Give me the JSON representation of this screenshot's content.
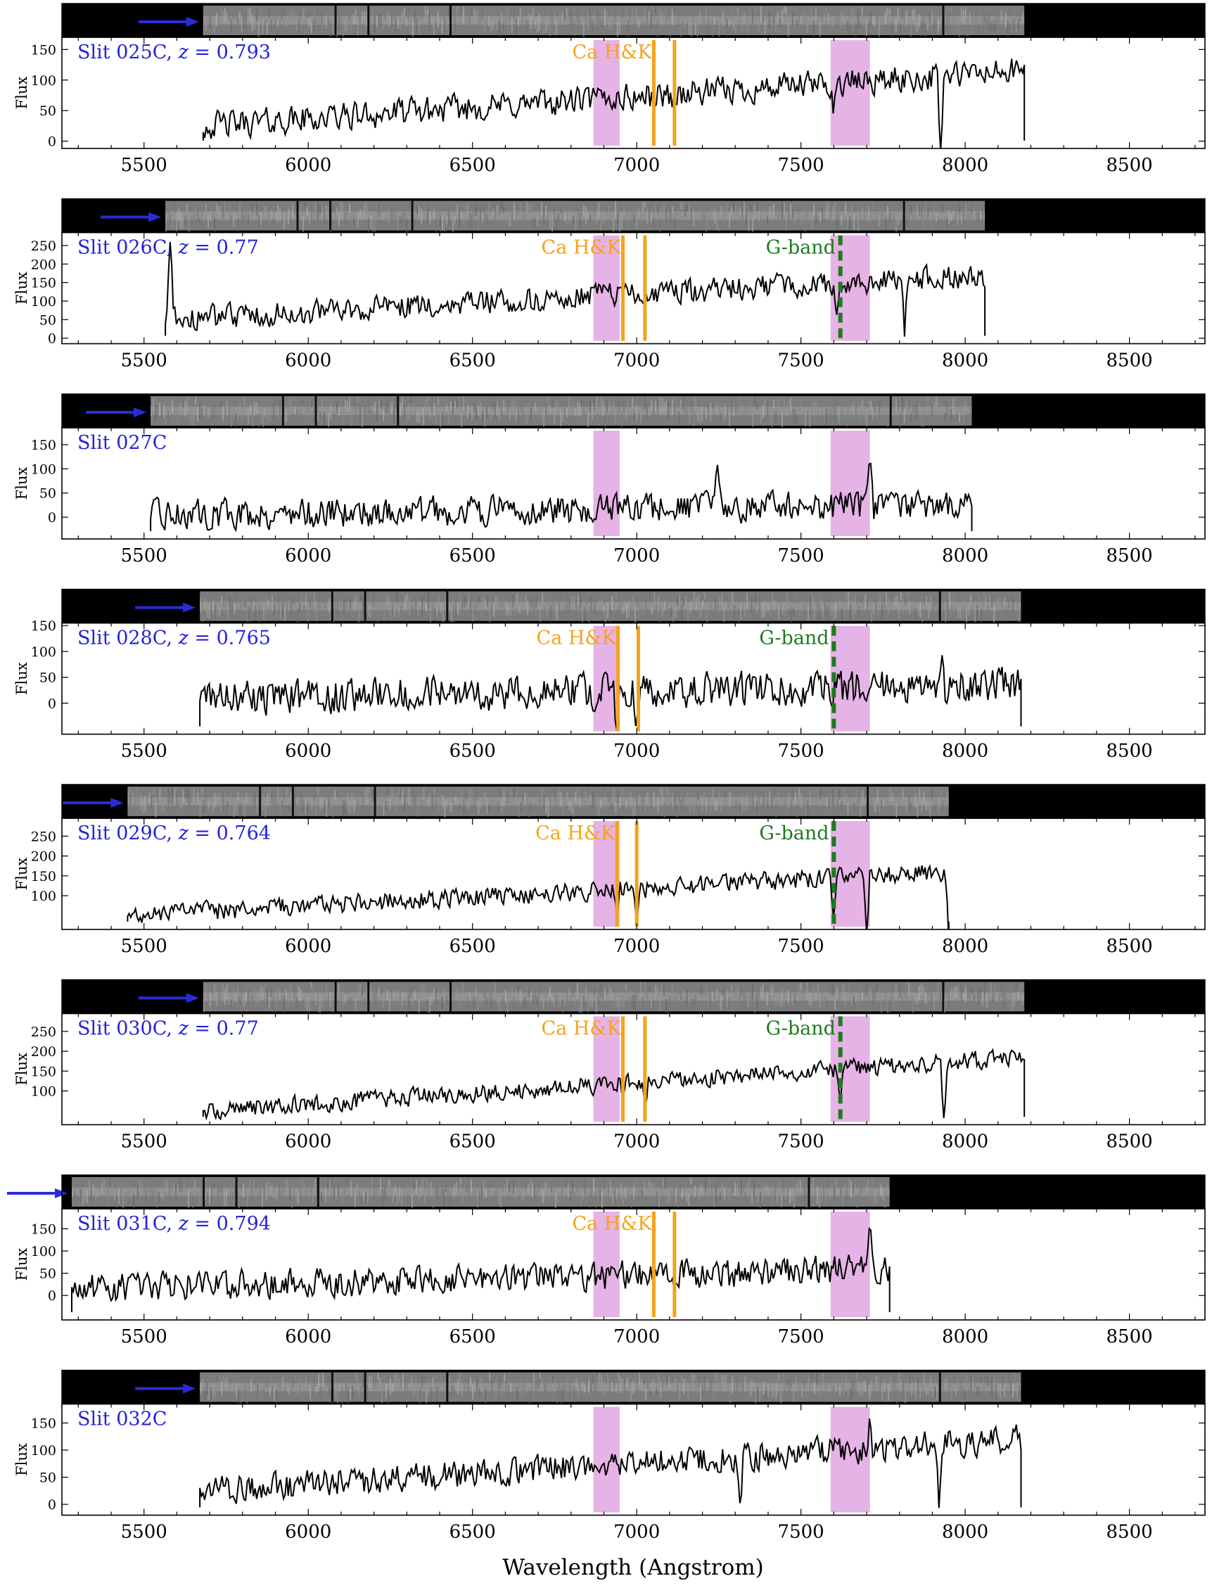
{
  "colors": {
    "spectrum": "#000000",
    "band": "#e6b3e6",
    "ca_hk": "#f5a31a",
    "g_band": "#1e7a1e",
    "label": "#2323d9",
    "arrow": "#2b2bdb"
  },
  "x_axis": {
    "label": "Wavelength (Angstrom)",
    "range": [
      5250,
      8730
    ],
    "ticks": [
      5500,
      6000,
      6500,
      7000,
      7500,
      8000,
      8500
    ],
    "tick_labels": [
      "5500",
      "6000",
      "6500",
      "7000",
      "7500",
      "8000",
      "8500"
    ]
  },
  "y_axis_label": "Flux",
  "absorption_bands": [
    [
      6868,
      6948
    ],
    [
      7590,
      7710
    ]
  ],
  "chart_data": [
    {
      "type": "line",
      "slit": "025C",
      "label": "Slit 025C, z = 0.793",
      "redshift": 0.793,
      "spectrum_range": [
        5680,
        8180
      ],
      "strip_range": [
        5680,
        8180
      ],
      "arrow_tip": 5680,
      "ylim": [
        -12,
        170
      ],
      "yticks": [
        0,
        50,
        100,
        150
      ],
      "yticklabels": [
        "0",
        "50",
        "100",
        "150"
      ],
      "base": 25,
      "slope": 90,
      "noise": 28,
      "ca_hk": [
        7052,
        7115
      ],
      "ca_hk_label": "Ca H&K",
      "g_band": null,
      "g_band_label": "",
      "dips": [
        [
          7600,
          -45
        ],
        [
          7925,
          -125
        ]
      ],
      "spikes": []
    },
    {
      "type": "line",
      "slit": "026C",
      "label": "Slit 026C, z = 0.77",
      "redshift": 0.77,
      "spectrum_range": [
        5565,
        8060
      ],
      "strip_range": [
        5565,
        8060
      ],
      "arrow_tip": 5565,
      "ylim": [
        -15,
        285
      ],
      "yticks": [
        0,
        50,
        100,
        150,
        200,
        250
      ],
      "yticklabels": [
        "0",
        "50",
        "100",
        "150",
        "200",
        "250"
      ],
      "base": 50,
      "slope": 120,
      "noise": 40,
      "ca_hk": [
        6958,
        7025
      ],
      "ca_hk_label": "Ca H&K",
      "g_band": 7620,
      "g_band_label": "G-band",
      "dips": [
        [
          7610,
          -90
        ],
        [
          7815,
          -150
        ]
      ],
      "spikes": [
        [
          5580,
          270
        ]
      ]
    },
    {
      "type": "line",
      "slit": "027C",
      "label": "Slit 027C",
      "redshift": null,
      "spectrum_range": [
        5520,
        8020
      ],
      "strip_range": [
        5520,
        8020
      ],
      "arrow_tip": 5520,
      "ylim": [
        -45,
        185
      ],
      "yticks": [
        0,
        50,
        100,
        150
      ],
      "yticklabels": [
        "0",
        "50",
        "100",
        "150"
      ],
      "base": 5,
      "slope": 20,
      "noise": 38,
      "ca_hk": null,
      "ca_hk_label": "",
      "g_band": null,
      "g_band_label": "",
      "dips": [],
      "spikes": [
        [
          7245,
          115
        ],
        [
          7710,
          130
        ]
      ]
    },
    {
      "type": "line",
      "slit": "028C",
      "label": "Slit 028C, z = 0.765",
      "redshift": 0.765,
      "spectrum_range": [
        5670,
        8170
      ],
      "strip_range": [
        5670,
        8170
      ],
      "arrow_tip": 5670,
      "ylim": [
        -60,
        155
      ],
      "yticks": [
        0,
        50,
        100,
        150
      ],
      "yticklabels": [
        "0",
        "50",
        "100",
        "150"
      ],
      "base": 10,
      "slope": 25,
      "noise": 42,
      "ca_hk": [
        6943,
        7005
      ],
      "ca_hk_label": "Ca H&K",
      "g_band": 7600,
      "g_band_label": "G-band",
      "dips": [
        [
          6940,
          -60
        ],
        [
          7000,
          -60
        ]
      ],
      "spikes": [
        [
          7930,
          95
        ]
      ]
    },
    {
      "type": "line",
      "slit": "029C",
      "label": "Slit 029C, z = 0.764",
      "redshift": 0.764,
      "spectrum_range": [
        5450,
        7950
      ],
      "strip_range": [
        5450,
        7950
      ],
      "arrow_tip": 5450,
      "ylim": [
        15,
        295
      ],
      "yticks": [
        100,
        150,
        200,
        250
      ],
      "yticklabels": [
        "100",
        "150",
        "200",
        "250"
      ],
      "base": 50,
      "slope": 110,
      "noise": 30,
      "ca_hk": [
        6940,
        7000
      ],
      "ca_hk_label": "Ca H&K",
      "g_band": 7600,
      "g_band_label": "G-band",
      "dips": [
        [
          6940,
          -70
        ],
        [
          7000,
          -70
        ],
        [
          7600,
          -90
        ],
        [
          7700,
          -150
        ],
        [
          7950,
          -160
        ]
      ],
      "spikes": []
    },
    {
      "type": "line",
      "slit": "030C",
      "label": "Slit 030C, z = 0.77",
      "redshift": 0.77,
      "spectrum_range": [
        5680,
        8180
      ],
      "strip_range": [
        5680,
        8180
      ],
      "arrow_tip": 5680,
      "ylim": [
        15,
        295
      ],
      "yticks": [
        100,
        150,
        200,
        250
      ],
      "yticklabels": [
        "100",
        "150",
        "200",
        "250"
      ],
      "base": 50,
      "slope": 135,
      "noise": 28,
      "ca_hk": [
        6958,
        7025
      ],
      "ca_hk_label": "Ca H&K",
      "g_band": 7620,
      "g_band_label": "G-band",
      "dips": [
        [
          6958,
          -50
        ],
        [
          7025,
          -60
        ],
        [
          7620,
          -95
        ],
        [
          7935,
          -160
        ]
      ],
      "spikes": []
    },
    {
      "type": "line",
      "slit": "031C",
      "label": "Slit 031C, z = 0.794",
      "redshift": 0.794,
      "spectrum_range": [
        5280,
        7770
      ],
      "strip_range": [
        5280,
        7770
      ],
      "arrow_tip": 5280,
      "ylim": [
        -55,
        195
      ],
      "yticks": [
        0,
        50,
        100,
        150
      ],
      "yticklabels": [
        "0",
        "50",
        "100",
        "150"
      ],
      "base": 15,
      "slope": 45,
      "noise": 40,
      "ca_hk": [
        7052,
        7115
      ],
      "ca_hk_label": "Ca H&K",
      "g_band": null,
      "g_band_label": "",
      "dips": [
        [
          7290,
          -40
        ]
      ],
      "spikes": [
        [
          7710,
          175
        ]
      ]
    },
    {
      "type": "line",
      "slit": "032C",
      "label": "Slit 032C",
      "redshift": null,
      "spectrum_range": [
        5670,
        8170
      ],
      "strip_range": [
        5670,
        8170
      ],
      "arrow_tip": 5670,
      "ylim": [
        -20,
        185
      ],
      "yticks": [
        0,
        50,
        100,
        150
      ],
      "yticklabels": [
        "0",
        "50",
        "100",
        "150"
      ],
      "base": 25,
      "slope": 95,
      "noise": 32,
      "ca_hk": null,
      "ca_hk_label": "",
      "g_band": null,
      "g_band_label": "",
      "dips": [
        [
          7315,
          -80
        ],
        [
          7920,
          -100
        ]
      ],
      "spikes": [
        [
          7710,
          175
        ]
      ]
    }
  ]
}
